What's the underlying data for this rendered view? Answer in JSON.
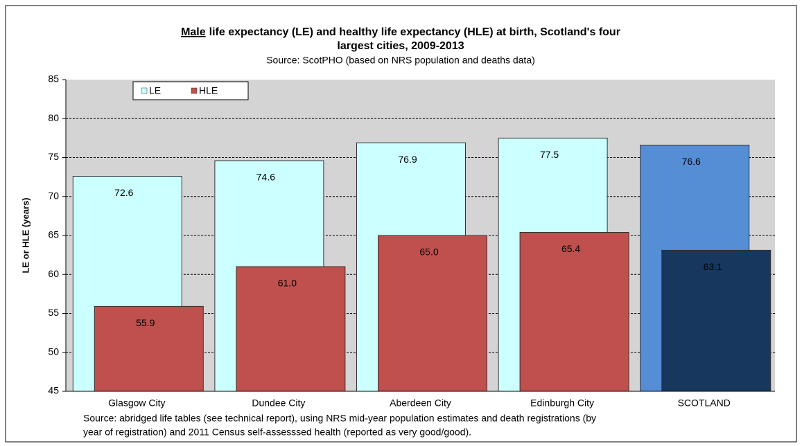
{
  "chart_data": {
    "type": "bar",
    "title_underlined": "Male",
    "title_lines": [
      "life expectancy (LE) and healthy life expectancy (HLE) at birth, Scotland's four",
      "largest cities, 2009-2013"
    ],
    "subtitle": "Source: ScotPHO (based on NRS population and deaths data)",
    "y_label": "LE or HLE (years)",
    "categories": [
      "Glasgow City",
      "Dundee City",
      "Aberdeen City",
      "Edinburgh City",
      "SCOTLAND"
    ],
    "series": [
      {
        "name": "LE",
        "color": "#ccffff",
        "colors": [
          "#ccffff",
          "#ccffff",
          "#ccffff",
          "#ccffff",
          "#558ed5"
        ],
        "values": [
          72.6,
          74.6,
          76.9,
          77.5,
          76.6
        ],
        "value_labels": [
          "72.6",
          "74.6",
          "76.9",
          "77.5",
          "76.6"
        ]
      },
      {
        "name": "HLE",
        "color": "#c0504d",
        "colors": [
          "#c0504d",
          "#c0504d",
          "#c0504d",
          "#c0504d",
          "#17375e"
        ],
        "values": [
          55.9,
          61.0,
          65.0,
          65.4,
          63.1
        ],
        "value_labels": [
          "55.9",
          "61.0",
          "65.0",
          "65.4",
          "63.1"
        ]
      }
    ],
    "ylim": [
      45,
      85
    ],
    "yticks": [
      45,
      50,
      55,
      60,
      65,
      70,
      75,
      80,
      85
    ],
    "grid": true,
    "legend": "top-left",
    "footnote": [
      "Source: abridged life tables (see technical report), using NRS mid-year population estimates and death registrations (by",
      "year of registration) and 2011 Census  self-assesssed health (reported as very good/good)."
    ]
  }
}
